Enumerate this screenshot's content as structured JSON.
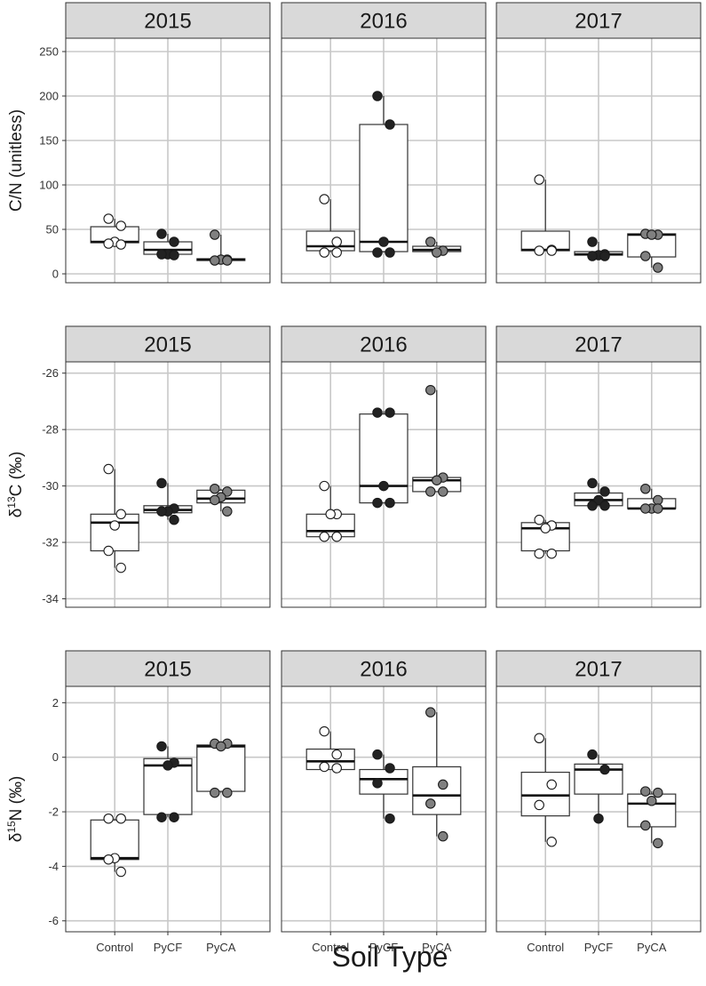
{
  "chart_data": {
    "type": "box",
    "xlabel": "Soil Type",
    "x_categories": [
      "Control",
      "PyCF",
      "PyCA"
    ],
    "years": [
      "2015",
      "2016",
      "2017"
    ],
    "point_colors": {
      "Control": "#ffffff",
      "PyCF": "#222222",
      "PyCA": "#808080"
    },
    "strip_color": "#d9d9d9",
    "grid": true,
    "rows": [
      {
        "ylabel": "C/N (unitless)",
        "ylabel_main": "C/N (unitless)",
        "ylabel_sup": "",
        "ylabel_end": "",
        "ylim": [
          -10,
          265
        ],
        "yticks": [
          0,
          50,
          100,
          150,
          200,
          250
        ],
        "panels": [
          {
            "year": "2015",
            "groups": [
              {
                "soil": "Control",
                "box": [
                  33,
                  35,
                  36,
                  53,
                  62
                ],
                "points": [
                  62,
                  54,
                  36,
                  34,
                  33
                ]
              },
              {
                "soil": "PyCF",
                "box": [
                  21,
                  22,
                  27,
                  36,
                  45
                ],
                "points": [
                  45,
                  36,
                  22,
                  22,
                  21
                ]
              },
              {
                "soil": "PyCA",
                "box": [
                  14,
                  15,
                  16,
                  17,
                  44
                ],
                "points": [
                  44,
                  16,
                  16,
                  15,
                  15
                ]
              }
            ]
          },
          {
            "year": "2016",
            "groups": [
              {
                "soil": "Control",
                "box": [
                  24,
                  26,
                  31,
                  48,
                  84
                ],
                "points": [
                  84,
                  36,
                  24,
                  24
                ]
              },
              {
                "soil": "PyCF",
                "box": [
                  24,
                  25,
                  36,
                  168,
                  200
                ],
                "points": [
                  200,
                  168,
                  36,
                  24,
                  24
                ]
              },
              {
                "soil": "PyCA",
                "box": [
                  24,
                  25,
                  27,
                  31,
                  36
                ],
                "points": [
                  36,
                  26,
                  24
                ]
              }
            ]
          },
          {
            "year": "2017",
            "groups": [
              {
                "soil": "Control",
                "box": [
                  26,
                  26,
                  27,
                  48,
                  106
                ],
                "points": [
                  106,
                  27,
                  26,
                  26
                ]
              },
              {
                "soil": "PyCF",
                "box": [
                  20,
                  21,
                  22,
                  25,
                  36
                ],
                "points": [
                  36,
                  22,
                  21,
                  20,
                  20
                ]
              },
              {
                "soil": "PyCA",
                "box": [
                  7,
                  19,
                  44,
                  45,
                  45
                ],
                "points": [
                  45,
                  44,
                  44,
                  20,
                  7
                ]
              }
            ]
          }
        ]
      },
      {
        "ylabel": "δ13C (‰)",
        "ylabel_main": "δ",
        "ylabel_sup": "13",
        "ylabel_end": "C (‰)",
        "ylim": [
          -34.3,
          -25.6
        ],
        "yticks": [
          -34,
          -32,
          -30,
          -28,
          -26
        ],
        "panels": [
          {
            "year": "2015",
            "groups": [
              {
                "soil": "Control",
                "box": [
                  -32.9,
                  -32.3,
                  -31.3,
                  -31.0,
                  -29.4
                ],
                "points": [
                  -29.4,
                  -31.0,
                  -31.4,
                  -32.3,
                  -32.9
                ]
              },
              {
                "soil": "PyCF",
                "box": [
                  -31.2,
                  -30.95,
                  -30.85,
                  -30.7,
                  -29.9
                ],
                "points": [
                  -29.9,
                  -30.8,
                  -30.9,
                  -30.9,
                  -31.2
                ]
              },
              {
                "soil": "PyCA",
                "box": [
                  -30.9,
                  -30.6,
                  -30.45,
                  -30.15,
                  -30.1
                ],
                "points": [
                  -30.1,
                  -30.2,
                  -30.4,
                  -30.5,
                  -30.9
                ]
              }
            ]
          },
          {
            "year": "2016",
            "groups": [
              {
                "soil": "Control",
                "box": [
                  -31.8,
                  -31.8,
                  -31.6,
                  -31.0,
                  -30.0
                ],
                "points": [
                  -30.0,
                  -31.0,
                  -31.0,
                  -31.8,
                  -31.8
                ]
              },
              {
                "soil": "PyCF",
                "box": [
                  -30.6,
                  -30.6,
                  -30.0,
                  -27.45,
                  -27.35
                ],
                "points": [
                  -27.4,
                  -27.4,
                  -30.0,
                  -30.6,
                  -30.6
                ]
              },
              {
                "soil": "PyCA",
                "box": [
                  -30.2,
                  -30.2,
                  -29.8,
                  -29.7,
                  -26.6
                ],
                "points": [
                  -26.6,
                  -29.7,
                  -29.8,
                  -30.2,
                  -30.2
                ]
              }
            ]
          },
          {
            "year": "2017",
            "groups": [
              {
                "soil": "Control",
                "box": [
                  -32.4,
                  -32.3,
                  -31.5,
                  -31.3,
                  -31.2
                ],
                "points": [
                  -31.2,
                  -31.4,
                  -31.5,
                  -32.4,
                  -32.4
                ]
              },
              {
                "soil": "PyCF",
                "box": [
                  -30.7,
                  -30.7,
                  -30.5,
                  -30.25,
                  -29.9
                ],
                "points": [
                  -29.9,
                  -30.2,
                  -30.5,
                  -30.7,
                  -30.7
                ]
              },
              {
                "soil": "PyCA",
                "box": [
                  -30.8,
                  -30.8,
                  -30.8,
                  -30.45,
                  -30.1
                ],
                "points": [
                  -30.1,
                  -30.5,
                  -30.8,
                  -30.8,
                  -30.8
                ]
              }
            ]
          }
        ]
      },
      {
        "ylabel": "δ15N (‰)",
        "ylabel_main": "δ",
        "ylabel_sup": "15",
        "ylabel_end": "N (‰)",
        "ylim": [
          -6.4,
          2.6
        ],
        "yticks": [
          -6,
          -4,
          -2,
          0,
          2
        ],
        "panels": [
          {
            "year": "2015",
            "groups": [
              {
                "soil": "Control",
                "box": [
                  -4.2,
                  -3.75,
                  -3.7,
                  -2.3,
                  -2.25
                ],
                "points": [
                  -2.25,
                  -2.25,
                  -3.7,
                  -3.75,
                  -4.2
                ]
              },
              {
                "soil": "PyCF",
                "box": [
                  -2.2,
                  -2.1,
                  -0.3,
                  -0.05,
                  0.4
                ],
                "points": [
                  0.4,
                  -0.2,
                  -0.3,
                  -2.2,
                  -2.2
                ]
              },
              {
                "soil": "PyCA",
                "box": [
                  -1.3,
                  -1.25,
                  0.4,
                  0.45,
                  0.5
                ],
                "points": [
                  0.5,
                  0.5,
                  0.4,
                  -1.3,
                  -1.3
                ]
              }
            ]
          },
          {
            "year": "2016",
            "groups": [
              {
                "soil": "Control",
                "box": [
                  -0.4,
                  -0.45,
                  -0.15,
                  0.3,
                  0.95
                ],
                "points": [
                  0.95,
                  0.1,
                  -0.35,
                  -0.4
                ]
              },
              {
                "soil": "PyCF",
                "box": [
                  -2.25,
                  -1.35,
                  -0.8,
                  -0.45,
                  0.1
                ],
                "points": [
                  0.1,
                  -0.4,
                  -0.95,
                  -2.25
                ]
              },
              {
                "soil": "PyCA",
                "box": [
                  -2.9,
                  -2.1,
                  -1.4,
                  -0.35,
                  1.65
                ],
                "points": [
                  1.65,
                  -1.0,
                  -1.7,
                  -2.9
                ]
              }
            ]
          },
          {
            "year": "2017",
            "groups": [
              {
                "soil": "Control",
                "box": [
                  -3.1,
                  -2.15,
                  -1.4,
                  -0.55,
                  0.7
                ],
                "points": [
                  0.7,
                  -1.0,
                  -1.75,
                  -3.1
                ]
              },
              {
                "soil": "PyCF",
                "box": [
                  -2.25,
                  -1.35,
                  -0.45,
                  -0.25,
                  0.1
                ],
                "points": [
                  0.1,
                  -0.45,
                  -2.25
                ]
              },
              {
                "soil": "PyCA",
                "box": [
                  -3.15,
                  -2.55,
                  -1.7,
                  -1.35,
                  -1.25
                ],
                "points": [
                  -1.25,
                  -1.3,
                  -1.6,
                  -2.5,
                  -3.15
                ]
              }
            ]
          }
        ]
      }
    ]
  }
}
